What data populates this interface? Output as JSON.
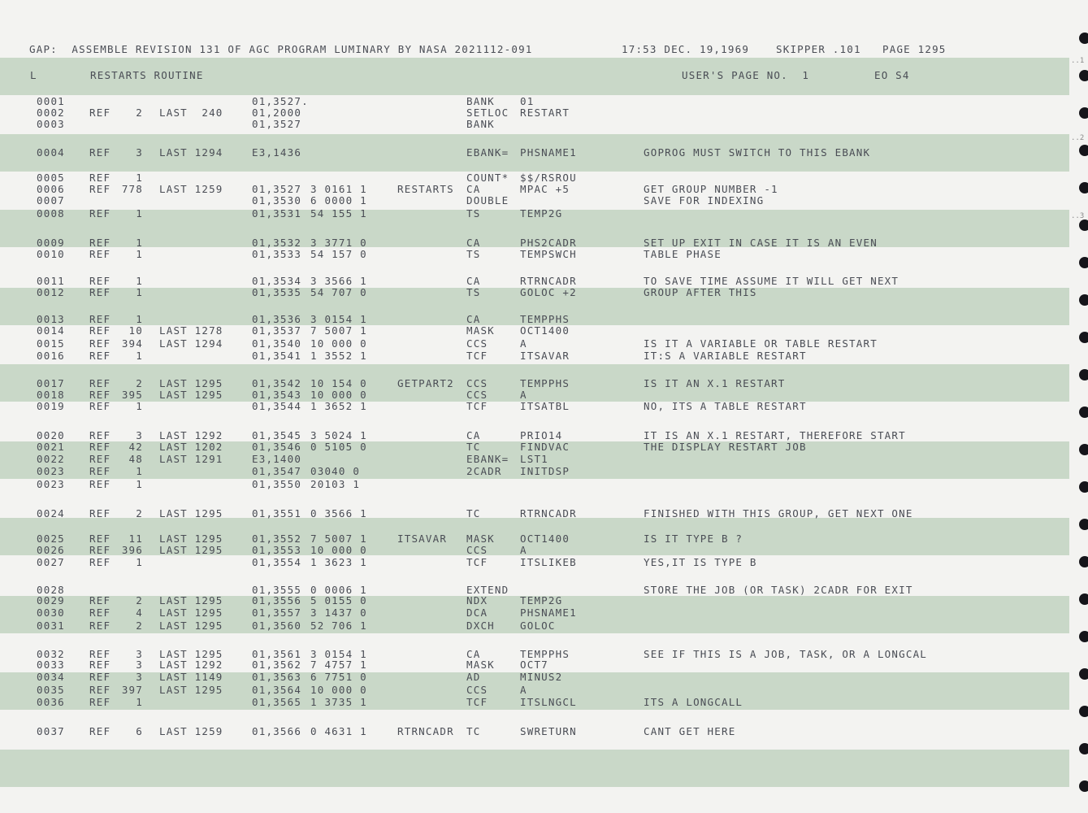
{
  "header": {
    "title": "GAP:  ASSEMBLE REVISION 131 OF AGC PROGRAM LUMINARY BY NASA 2021112-091",
    "time": "17:53 DEC. 19,1969",
    "user": "SKIPPER .101",
    "page": "PAGE 1295"
  },
  "subheader": {
    "code": "L",
    "routine": "RESTARTS ROUTINE",
    "users_page": "USER'S PAGE NO.  1",
    "sheet": "EO S4"
  },
  "margin_marks": [
    "..1",
    "..2",
    "..3"
  ],
  "lines": [
    {
      "num": "0001",
      "ref": "",
      "cnt": "",
      "last": "",
      "addr": "01,3527.",
      "code": "",
      "label": "",
      "op": "BANK",
      "arg": "01",
      "comment": ""
    },
    {
      "num": "0002",
      "ref": "REF",
      "cnt": "2",
      "last": "LAST  240",
      "addr": "01,2000",
      "code": "",
      "label": "",
      "op": "SETLOC",
      "arg": "RESTART",
      "comment": ""
    },
    {
      "num": "0003",
      "ref": "",
      "cnt": "",
      "last": "",
      "addr": "01,3527",
      "code": "",
      "label": "",
      "op": "BANK",
      "arg": "",
      "comment": ""
    },
    {
      "num": "0004",
      "ref": "REF",
      "cnt": "3",
      "last": "LAST 1294",
      "addr": "E3,1436",
      "code": "",
      "label": "",
      "op": "EBANK=",
      "arg": "PHSNAME1",
      "comment": "GOPROG MUST SWITCH TO THIS EBANK"
    },
    {
      "num": "0005",
      "ref": "REF",
      "cnt": "1",
      "last": "",
      "addr": "",
      "code": "",
      "label": "",
      "op": "COUNT*",
      "arg": "$$/RSROU",
      "comment": ""
    },
    {
      "num": "0006",
      "ref": "REF",
      "cnt": "778",
      "last": "LAST 1259",
      "addr": "01,3527",
      "code": "3 0161 1",
      "label": "RESTARTS",
      "op": "CA",
      "arg": "MPAC +5",
      "comment": "GET GROUP NUMBER -1"
    },
    {
      "num": "0007",
      "ref": "",
      "cnt": "",
      "last": "",
      "addr": "01,3530",
      "code": "6 0000 1",
      "label": "",
      "op": "DOUBLE",
      "arg": "",
      "comment": "SAVE FOR INDEXING"
    },
    {
      "num": "0008",
      "ref": "REF",
      "cnt": "1",
      "last": "",
      "addr": "01,3531",
      "code": "54 155 1",
      "label": "",
      "op": "TS",
      "arg": "TEMP2G",
      "comment": ""
    },
    {
      "num": "0009",
      "ref": "REF",
      "cnt": "1",
      "last": "",
      "addr": "01,3532",
      "code": "3 3771 0",
      "label": "",
      "op": "CA",
      "arg": "PHS2CADR",
      "comment": "SET UP EXIT IN CASE IT IS AN EVEN"
    },
    {
      "num": "0010",
      "ref": "REF",
      "cnt": "1",
      "last": "",
      "addr": "01,3533",
      "code": "54 157 0",
      "label": "",
      "op": "TS",
      "arg": "TEMPSWCH",
      "comment": "TABLE PHASE"
    },
    {
      "num": "0011",
      "ref": "REF",
      "cnt": "1",
      "last": "",
      "addr": "01,3534",
      "code": "3 3566 1",
      "label": "",
      "op": "CA",
      "arg": "RTRNCADR",
      "comment": "TO SAVE TIME ASSUME IT WILL GET NEXT"
    },
    {
      "num": "0012",
      "ref": "REF",
      "cnt": "1",
      "last": "",
      "addr": "01,3535",
      "code": "54 707 0",
      "label": "",
      "op": "TS",
      "arg": "GOLOC +2",
      "comment": "GROUP AFTER THIS"
    },
    {
      "num": "0013",
      "ref": "REF",
      "cnt": "1",
      "last": "",
      "addr": "01,3536",
      "code": "3 0154 1",
      "label": "",
      "op": "CA",
      "arg": "TEMPPHS",
      "comment": ""
    },
    {
      "num": "0014",
      "ref": "REF",
      "cnt": "10",
      "last": "LAST 1278",
      "addr": "01,3537",
      "code": "7 5007 1",
      "label": "",
      "op": "MASK",
      "arg": "OCT1400",
      "comment": ""
    },
    {
      "num": "0015",
      "ref": "REF",
      "cnt": "394",
      "last": "LAST 1294",
      "addr": "01,3540",
      "code": "10 000 0",
      "label": "",
      "op": "CCS",
      "arg": "A",
      "comment": "IS IT A VARIABLE OR TABLE RESTART"
    },
    {
      "num": "0016",
      "ref": "REF",
      "cnt": "1",
      "last": "",
      "addr": "01,3541",
      "code": "1 3552 1",
      "label": "",
      "op": "TCF",
      "arg": "ITSAVAR",
      "comment": "IT:S A VARIABLE RESTART"
    },
    {
      "num": "0017",
      "ref": "REF",
      "cnt": "2",
      "last": "LAST 1295",
      "addr": "01,3542",
      "code": "10 154 0",
      "label": "GETPART2",
      "op": "CCS",
      "arg": "TEMPPHS",
      "comment": "IS IT AN X.1 RESTART"
    },
    {
      "num": "0018",
      "ref": "REF",
      "cnt": "395",
      "last": "LAST 1295",
      "addr": "01,3543",
      "code": "10 000 0",
      "label": "",
      "op": "CCS",
      "arg": "A",
      "comment": ""
    },
    {
      "num": "0019",
      "ref": "REF",
      "cnt": "1",
      "last": "",
      "addr": "01,3544",
      "code": "1 3652 1",
      "label": "",
      "op": "TCF",
      "arg": "ITSATBL",
      "comment": "NO, ITS A TABLE RESTART"
    },
    {
      "num": "0020",
      "ref": "REF",
      "cnt": "3",
      "last": "LAST 1292",
      "addr": "01,3545",
      "code": "3 5024 1",
      "label": "",
      "op": "CA",
      "arg": "PRIO14",
      "comment": "IT IS AN X.1 RESTART, THEREFORE START"
    },
    {
      "num": "0021",
      "ref": "REF",
      "cnt": "42",
      "last": "LAST 1202",
      "addr": "01,3546",
      "code": "0 5105 0",
      "label": "",
      "op": "TC",
      "arg": "FINDVAC",
      "comment": "THE DISPLAY RESTART JOB"
    },
    {
      "num": "0022",
      "ref": "REF",
      "cnt": "48",
      "last": "LAST 1291",
      "addr": "E3,1400",
      "code": "",
      "label": "",
      "op": "EBANK=",
      "arg": "LST1",
      "comment": ""
    },
    {
      "num": "0023",
      "ref": "REF",
      "cnt": "1",
      "last": "",
      "addr": "01,3547",
      "code": "03040 0",
      "label": "",
      "op": "2CADR",
      "arg": "INITDSP",
      "comment": ""
    },
    {
      "num": "0023",
      "ref": "REF",
      "cnt": "1",
      "last": "",
      "addr": "01,3550",
      "code": "20103 1",
      "label": "",
      "op": "",
      "arg": "",
      "comment": ""
    },
    {
      "num": "0024",
      "ref": "REF",
      "cnt": "2",
      "last": "LAST 1295",
      "addr": "01,3551",
      "code": "0 3566 1",
      "label": "",
      "op": "TC",
      "arg": "RTRNCADR",
      "comment": "FINISHED WITH THIS GROUP, GET NEXT ONE"
    },
    {
      "num": "0025",
      "ref": "REF",
      "cnt": "11",
      "last": "LAST 1295",
      "addr": "01,3552",
      "code": "7 5007 1",
      "label": "ITSAVAR",
      "op": "MASK",
      "arg": "OCT1400",
      "comment": "IS IT TYPE B ?"
    },
    {
      "num": "0026",
      "ref": "REF",
      "cnt": "396",
      "last": "LAST 1295",
      "addr": "01,3553",
      "code": "10 000 0",
      "label": "",
      "op": "CCS",
      "arg": "A",
      "comment": ""
    },
    {
      "num": "0027",
      "ref": "REF",
      "cnt": "1",
      "last": "",
      "addr": "01,3554",
      "code": "1 3623 1",
      "label": "",
      "op": "TCF",
      "arg": "ITSLIKEB",
      "comment": "YES,IT IS TYPE B"
    },
    {
      "num": "0028",
      "ref": "",
      "cnt": "",
      "last": "",
      "addr": "01,3555",
      "code": "0 0006 1",
      "label": "",
      "op": "EXTEND",
      "arg": "",
      "comment": "STORE THE JOB (OR TASK) 2CADR FOR EXIT"
    },
    {
      "num": "0029",
      "ref": "REF",
      "cnt": "2",
      "last": "LAST 1295",
      "addr": "01,3556",
      "code": "5 0155 0",
      "label": "",
      "op": "NDX",
      "arg": "TEMP2G",
      "comment": ""
    },
    {
      "num": "0030",
      "ref": "REF",
      "cnt": "4",
      "last": "LAST 1295",
      "addr": "01,3557",
      "code": "3 1437 0",
      "label": "",
      "op": "DCA",
      "arg": "PHSNAME1",
      "comment": ""
    },
    {
      "num": "0031",
      "ref": "REF",
      "cnt": "2",
      "last": "LAST 1295",
      "addr": "01,3560",
      "code": "52 706 1",
      "label": "",
      "op": "DXCH",
      "arg": "GOLOC",
      "comment": ""
    },
    {
      "num": "0032",
      "ref": "REF",
      "cnt": "3",
      "last": "LAST 1295",
      "addr": "01,3561",
      "code": "3 0154 1",
      "label": "",
      "op": "CA",
      "arg": "TEMPPHS",
      "comment": "SEE IF THIS IS A JOB, TASK, OR A LONGCAL"
    },
    {
      "num": "0033",
      "ref": "REF",
      "cnt": "3",
      "last": "LAST 1292",
      "addr": "01,3562",
      "code": "7 4757 1",
      "label": "",
      "op": "MASK",
      "arg": "OCT7",
      "comment": ""
    },
    {
      "num": "0034",
      "ref": "REF",
      "cnt": "3",
      "last": "LAST 1149",
      "addr": "01,3563",
      "code": "6 7751 0",
      "label": "",
      "op": "AD",
      "arg": "MINUS2",
      "comment": ""
    },
    {
      "num": "0035",
      "ref": "REF",
      "cnt": "397",
      "last": "LAST 1295",
      "addr": "01,3564",
      "code": "10 000 0",
      "label": "",
      "op": "CCS",
      "arg": "A",
      "comment": ""
    },
    {
      "num": "0036",
      "ref": "REF",
      "cnt": "1",
      "last": "",
      "addr": "01,3565",
      "code": "1 3735 1",
      "label": "",
      "op": "TCF",
      "arg": "ITSLNGCL",
      "comment": "ITS A LONGCALL"
    },
    {
      "num": "0037",
      "ref": "REF",
      "cnt": "6",
      "last": "LAST 1259",
      "addr": "01,3566",
      "code": "0 4631 1",
      "label": "RTRNCADR",
      "op": "TC",
      "arg": "SWRETURN",
      "comment": "CANT GET HERE"
    }
  ]
}
